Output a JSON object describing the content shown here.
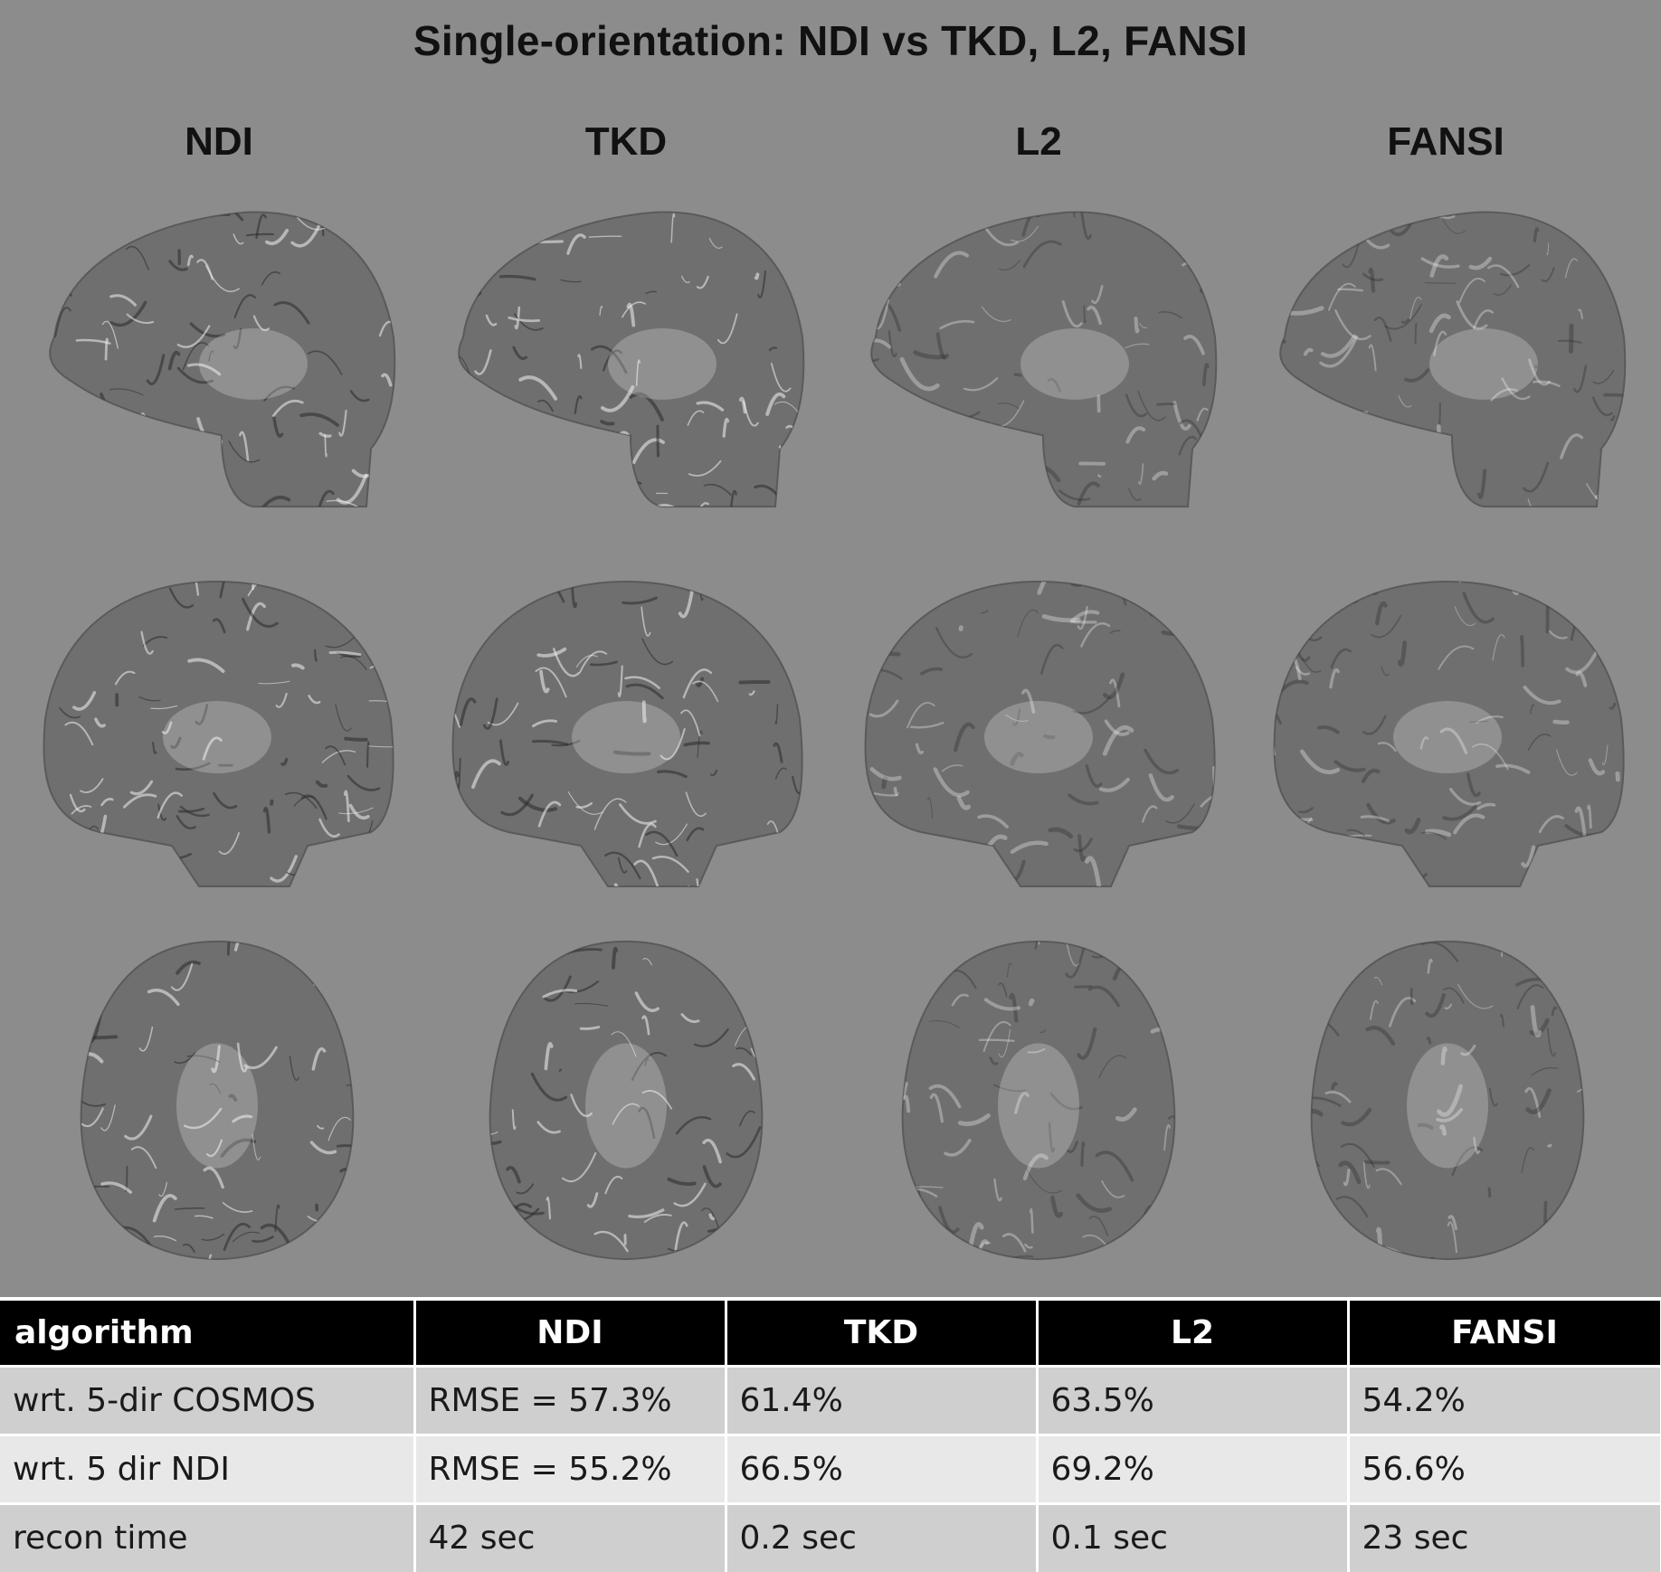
{
  "figure": {
    "title": "Single-orientation: NDI vs TKD, L2, FANSI",
    "columns": [
      "NDI",
      "TKD",
      "L2",
      "FANSI"
    ],
    "rows": [
      "sagittal",
      "coronal",
      "axial"
    ],
    "colors": {
      "background": "#8c8c8c",
      "tissue": "#6f6f6f",
      "bright": "#f2f2f2",
      "dark": "#2a2a2a"
    }
  },
  "table": {
    "headers": [
      "algorithm",
      "NDI",
      "TKD",
      "L2",
      "FANSI"
    ],
    "rows": [
      {
        "label": "wrt. 5-dir COSMOS",
        "values": [
          "RMSE = 57.3%",
          "61.4%",
          "63.5%",
          "54.2%"
        ]
      },
      {
        "label": "wrt. 5 dir NDI",
        "values": [
          "RMSE = 55.2%",
          "66.5%",
          "69.2%",
          "56.6%"
        ]
      },
      {
        "label": "recon time",
        "values": [
          "42 sec",
          "0.2 sec",
          "0.1 sec",
          "23 sec"
        ]
      }
    ]
  }
}
